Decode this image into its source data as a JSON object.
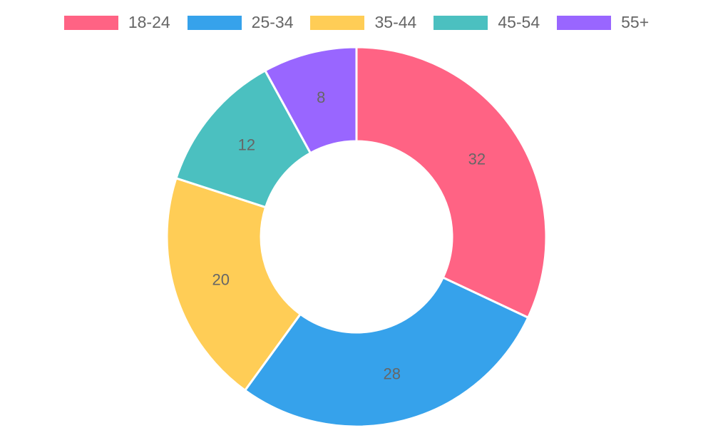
{
  "chart_data": {
    "type": "pie",
    "subtype": "doughnut",
    "title": "",
    "categories": [
      "18-24",
      "25-34",
      "35-44",
      "45-54",
      "55+"
    ],
    "values": [
      32,
      28,
      20,
      12,
      8
    ],
    "colors": [
      "#ff6384",
      "#36a2eb",
      "#ffcd56",
      "#4bc0c0",
      "#9966ff"
    ],
    "legend_position": "top",
    "data_labels": true,
    "start_angle_deg": -90
  },
  "legend": {
    "items": [
      {
        "label": "18-24",
        "color": "#ff6384"
      },
      {
        "label": "25-34",
        "color": "#36a2eb"
      },
      {
        "label": "35-44",
        "color": "#ffcd56"
      },
      {
        "label": "45-54",
        "color": "#4bc0c0"
      },
      {
        "label": "55+",
        "color": "#9966ff"
      }
    ]
  },
  "labels": [
    "32",
    "28",
    "20",
    "12",
    "8"
  ]
}
